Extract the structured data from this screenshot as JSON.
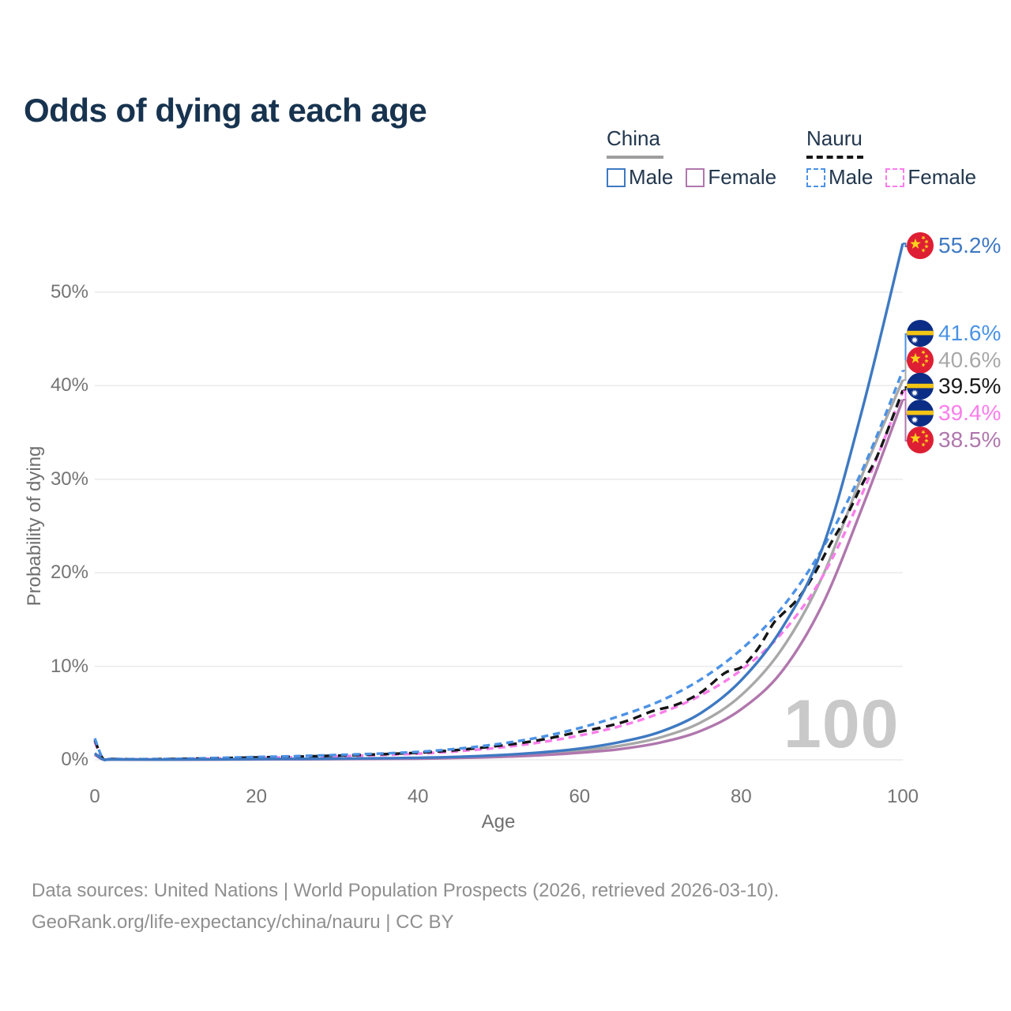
{
  "title": "Odds of dying at each age",
  "legend": {
    "groups": [
      {
        "title": "China",
        "line_style": "solid",
        "underline_color": "#9e9e9e",
        "items": [
          {
            "label": "Male",
            "color": "#3e79c2",
            "dashed": false
          },
          {
            "label": "Female",
            "color": "#b077ad",
            "dashed": false
          }
        ]
      },
      {
        "title": "Nauru",
        "line_style": "dashed",
        "underline_color": "#151515",
        "items": [
          {
            "label": "Male",
            "color": "#4b92e5",
            "dashed": true
          },
          {
            "label": "Female",
            "color": "#fb7deb",
            "dashed": true
          }
        ]
      }
    ]
  },
  "watermark": "100",
  "footer": {
    "line1": "Data sources: United Nations | World Population Prospects (2026, retrieved 2026-03-10).",
    "line2": "GeoRank.org/life-expectancy/china/nauru | CC BY"
  },
  "chart_data": {
    "type": "line",
    "title": "Odds of dying at each age",
    "xlabel": "Age",
    "ylabel": "Probability of dying",
    "xlim": [
      0,
      100
    ],
    "ylim_percent": [
      0,
      56
    ],
    "x_ticks": [
      0,
      20,
      40,
      60,
      80,
      100
    ],
    "y_ticks": [
      "0%",
      "10%",
      "20%",
      "30%",
      "40%",
      "50%"
    ],
    "grid": "horizontal",
    "legend_position": "top-right",
    "series": [
      {
        "id": "china-total",
        "name": "China (both sexes)",
        "country": "China",
        "sex": "All",
        "color": "#a8a8a8",
        "dash": "solid",
        "end_value": 40.6,
        "ages": [
          0,
          1,
          2,
          5,
          10,
          15,
          20,
          25,
          30,
          35,
          40,
          45,
          50,
          55,
          60,
          65,
          70,
          75,
          80,
          85,
          90,
          95,
          100
        ],
        "values": [
          0.62,
          0.05,
          0.035,
          0.025,
          0.025,
          0.04,
          0.06,
          0.08,
          0.1,
          0.13,
          0.17,
          0.26,
          0.4,
          0.62,
          0.98,
          1.5,
          2.4,
          4.0,
          6.9,
          11.8,
          19.5,
          30.5,
          40.6
        ]
      },
      {
        "id": "china-female",
        "name": "China Female",
        "country": "China",
        "sex": "Female",
        "color": "#b077ad",
        "dash": "solid",
        "end_value": 38.5,
        "ages": [
          0,
          1,
          2,
          5,
          10,
          15,
          20,
          25,
          30,
          35,
          40,
          45,
          50,
          55,
          60,
          65,
          70,
          75,
          80,
          85,
          90,
          95,
          100
        ],
        "values": [
          0.55,
          0.045,
          0.03,
          0.02,
          0.02,
          0.035,
          0.05,
          0.06,
          0.08,
          0.1,
          0.13,
          0.2,
          0.31,
          0.48,
          0.75,
          1.15,
          1.85,
          3.1,
          5.4,
          9.4,
          16.5,
          27.0,
          38.5
        ]
      },
      {
        "id": "nauru-female",
        "name": "Nauru Female",
        "country": "Nauru",
        "sex": "Female",
        "color": "#fb7deb",
        "dash": "9 6",
        "end_value": 39.4,
        "ages": [
          0,
          1,
          2,
          5,
          10,
          15,
          20,
          25,
          30,
          35,
          40,
          45,
          50,
          55,
          60,
          65,
          70,
          75,
          80,
          85,
          90,
          95,
          100
        ],
        "values": [
          1.9,
          0.12,
          0.08,
          0.06,
          0.08,
          0.14,
          0.21,
          0.28,
          0.38,
          0.5,
          0.66,
          0.92,
          1.3,
          1.85,
          2.6,
          3.6,
          5.0,
          6.9,
          9.6,
          13.5,
          19.5,
          28.5,
          39.4
        ]
      },
      {
        "id": "nauru-total",
        "name": "Nauru (both sexes)",
        "country": "Nauru",
        "sex": "All",
        "color": "#151515",
        "dash": "11 7",
        "end_value": 39.5,
        "ages": [
          0,
          1,
          2,
          5,
          10,
          15,
          20,
          25,
          30,
          35,
          40,
          45,
          50,
          55,
          60,
          63,
          66,
          69,
          72,
          75,
          78,
          80,
          82,
          84,
          85,
          87,
          89,
          91,
          93,
          95,
          97,
          100
        ],
        "values": [
          2.1,
          0.14,
          0.09,
          0.07,
          0.09,
          0.17,
          0.26,
          0.34,
          0.45,
          0.58,
          0.76,
          1.06,
          1.5,
          2.1,
          3.0,
          3.5,
          4.2,
          5.2,
          5.9,
          7.2,
          9.3,
          9.9,
          11.8,
          14.6,
          15.5,
          17.2,
          19.8,
          23.0,
          26.0,
          29.5,
          32.8,
          39.5
        ]
      },
      {
        "id": "nauru-male",
        "name": "Nauru Male",
        "country": "Nauru",
        "sex": "Male",
        "color": "#4b92e5",
        "dash": "9 6",
        "end_value": 41.6,
        "ages": [
          0,
          1,
          2,
          5,
          10,
          15,
          20,
          25,
          30,
          35,
          40,
          45,
          50,
          55,
          60,
          65,
          70,
          75,
          80,
          85,
          90,
          95,
          100
        ],
        "values": [
          2.3,
          0.15,
          0.1,
          0.08,
          0.1,
          0.2,
          0.3,
          0.4,
          0.52,
          0.66,
          0.85,
          1.2,
          1.7,
          2.4,
          3.4,
          4.7,
          6.3,
          8.6,
          11.8,
          16.2,
          22.5,
          31.0,
          41.6
        ]
      },
      {
        "id": "china-male",
        "name": "China Male",
        "country": "China",
        "sex": "Male",
        "color": "#3e79c2",
        "dash": "solid",
        "end_value": 55.2,
        "ages": [
          0,
          1,
          2,
          5,
          10,
          15,
          20,
          25,
          30,
          35,
          40,
          45,
          50,
          55,
          60,
          65,
          70,
          75,
          80,
          85,
          90,
          95,
          100
        ],
        "values": [
          0.7,
          0.06,
          0.04,
          0.03,
          0.03,
          0.05,
          0.08,
          0.1,
          0.13,
          0.16,
          0.22,
          0.32,
          0.5,
          0.78,
          1.2,
          1.9,
          3.0,
          5.0,
          8.5,
          14.0,
          22.5,
          37.5,
          55.2
        ]
      }
    ],
    "end_labels": [
      {
        "series": "china-male",
        "text": "55.2%",
        "color": "#3e79c2",
        "flag": "china"
      },
      {
        "series": "nauru-male",
        "text": "41.6%",
        "color": "#4b92e5",
        "flag": "nauru"
      },
      {
        "series": "china-total",
        "text": "40.6%",
        "color": "#a8a8a8",
        "flag": "china"
      },
      {
        "series": "nauru-total",
        "text": "39.5%",
        "color": "#1a1a1a",
        "flag": "nauru"
      },
      {
        "series": "nauru-female",
        "text": "39.4%",
        "color": "#fb7deb",
        "flag": "nauru"
      },
      {
        "series": "china-female",
        "text": "38.5%",
        "color": "#b077ad",
        "flag": "china"
      }
    ]
  }
}
